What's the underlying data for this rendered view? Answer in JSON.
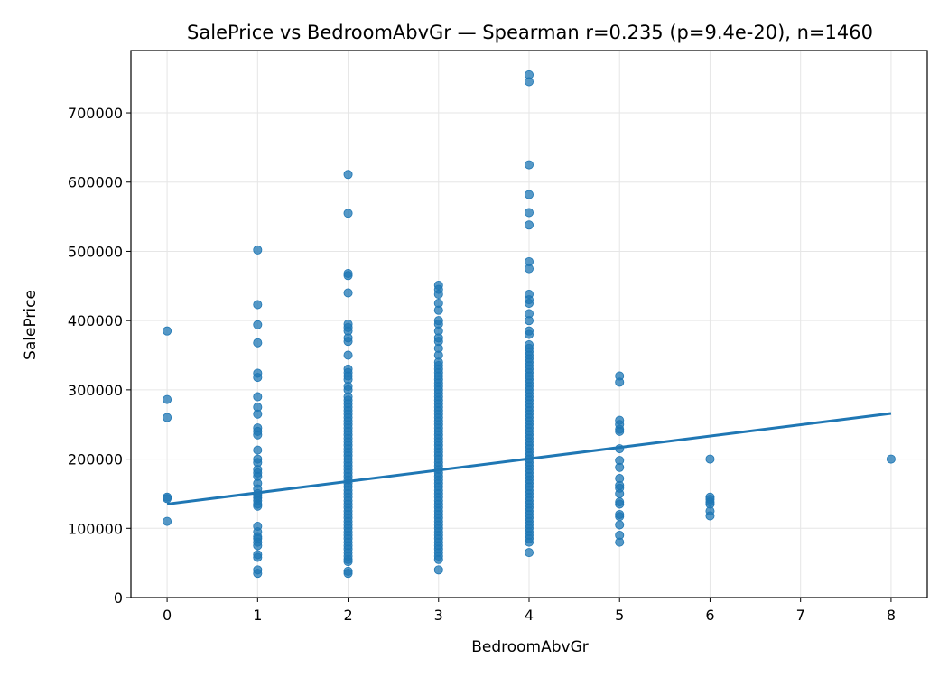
{
  "chart_data": {
    "type": "scatter",
    "title": "SalePrice vs BedroomAbvGr — Spearman r=0.235 (p=9.4e-20), n=1460",
    "xlabel": "BedroomAbvGr",
    "ylabel": "SalePrice",
    "xlim": [
      -0.4,
      8.4
    ],
    "ylim": [
      0,
      790000
    ],
    "xticks": [
      0,
      1,
      2,
      3,
      4,
      5,
      6,
      7,
      8
    ],
    "yticks": [
      0,
      100000,
      200000,
      300000,
      400000,
      500000,
      600000,
      700000
    ],
    "grid": true,
    "point_color": "#1f77b4",
    "line_color": "#1f77b4",
    "series": [
      {
        "type": "scatter",
        "points": [
          [
            0,
            385000
          ],
          [
            0,
            286000
          ],
          [
            0,
            260000
          ],
          [
            0,
            145000
          ],
          [
            0,
            143000
          ],
          [
            0,
            110000
          ],
          [
            1,
            502000
          ],
          [
            1,
            423000
          ],
          [
            1,
            394000
          ],
          [
            1,
            368000
          ],
          [
            1,
            324000
          ],
          [
            1,
            318000
          ],
          [
            1,
            290000
          ],
          [
            1,
            275000
          ],
          [
            1,
            265000
          ],
          [
            1,
            245000
          ],
          [
            1,
            240000
          ],
          [
            1,
            235000
          ],
          [
            1,
            213000
          ],
          [
            1,
            200000
          ],
          [
            1,
            195000
          ],
          [
            1,
            185000
          ],
          [
            1,
            180000
          ],
          [
            1,
            175000
          ],
          [
            1,
            165000
          ],
          [
            1,
            157000
          ],
          [
            1,
            150000
          ],
          [
            1,
            147000
          ],
          [
            1,
            144000
          ],
          [
            1,
            140000
          ],
          [
            1,
            135000
          ],
          [
            1,
            132000
          ],
          [
            1,
            103000
          ],
          [
            1,
            95000
          ],
          [
            1,
            88000
          ],
          [
            1,
            85000
          ],
          [
            1,
            80000
          ],
          [
            1,
            75000
          ],
          [
            1,
            62000
          ],
          [
            1,
            58000
          ],
          [
            1,
            40000
          ],
          [
            1,
            35000
          ],
          [
            2,
            611000
          ],
          [
            2,
            555000
          ],
          [
            2,
            468000
          ],
          [
            2,
            465000
          ],
          [
            2,
            440000
          ],
          [
            2,
            395000
          ],
          [
            2,
            390000
          ],
          [
            2,
            385000
          ],
          [
            2,
            375000
          ],
          [
            2,
            370000
          ],
          [
            2,
            350000
          ],
          [
            2,
            330000
          ],
          [
            2,
            325000
          ],
          [
            2,
            320000
          ],
          [
            2,
            315000
          ],
          [
            2,
            305000
          ],
          [
            2,
            300000
          ],
          [
            2,
            290000
          ],
          [
            2,
            285000
          ],
          [
            2,
            280000
          ],
          [
            2,
            275000
          ],
          [
            2,
            270000
          ],
          [
            2,
            265000
          ],
          [
            2,
            260000
          ],
          [
            2,
            255000
          ],
          [
            2,
            250000
          ],
          [
            2,
            245000
          ],
          [
            2,
            240000
          ],
          [
            2,
            235000
          ],
          [
            2,
            230000
          ],
          [
            2,
            225000
          ],
          [
            2,
            220000
          ],
          [
            2,
            215000
          ],
          [
            2,
            210000
          ],
          [
            2,
            205000
          ],
          [
            2,
            200000
          ],
          [
            2,
            195000
          ],
          [
            2,
            190000
          ],
          [
            2,
            185000
          ],
          [
            2,
            180000
          ],
          [
            2,
            175000
          ],
          [
            2,
            170000
          ],
          [
            2,
            165000
          ],
          [
            2,
            160000
          ],
          [
            2,
            155000
          ],
          [
            2,
            150000
          ],
          [
            2,
            145000
          ],
          [
            2,
            140000
          ],
          [
            2,
            135000
          ],
          [
            2,
            130000
          ],
          [
            2,
            125000
          ],
          [
            2,
            120000
          ],
          [
            2,
            115000
          ],
          [
            2,
            110000
          ],
          [
            2,
            105000
          ],
          [
            2,
            100000
          ],
          [
            2,
            95000
          ],
          [
            2,
            90000
          ],
          [
            2,
            85000
          ],
          [
            2,
            80000
          ],
          [
            2,
            75000
          ],
          [
            2,
            70000
          ],
          [
            2,
            65000
          ],
          [
            2,
            60000
          ],
          [
            2,
            55000
          ],
          [
            2,
            52000
          ],
          [
            2,
            38000
          ],
          [
            2,
            35000
          ],
          [
            3,
            451000
          ],
          [
            3,
            445000
          ],
          [
            3,
            438000
          ],
          [
            3,
            425000
          ],
          [
            3,
            415000
          ],
          [
            3,
            400000
          ],
          [
            3,
            395000
          ],
          [
            3,
            385000
          ],
          [
            3,
            375000
          ],
          [
            3,
            370000
          ],
          [
            3,
            360000
          ],
          [
            3,
            350000
          ],
          [
            3,
            340000
          ],
          [
            3,
            335000
          ],
          [
            3,
            330000
          ],
          [
            3,
            325000
          ],
          [
            3,
            320000
          ],
          [
            3,
            315000
          ],
          [
            3,
            310000
          ],
          [
            3,
            305000
          ],
          [
            3,
            300000
          ],
          [
            3,
            295000
          ],
          [
            3,
            290000
          ],
          [
            3,
            285000
          ],
          [
            3,
            280000
          ],
          [
            3,
            275000
          ],
          [
            3,
            270000
          ],
          [
            3,
            265000
          ],
          [
            3,
            260000
          ],
          [
            3,
            255000
          ],
          [
            3,
            250000
          ],
          [
            3,
            245000
          ],
          [
            3,
            240000
          ],
          [
            3,
            235000
          ],
          [
            3,
            230000
          ],
          [
            3,
            225000
          ],
          [
            3,
            220000
          ],
          [
            3,
            215000
          ],
          [
            3,
            210000
          ],
          [
            3,
            205000
          ],
          [
            3,
            200000
          ],
          [
            3,
            195000
          ],
          [
            3,
            190000
          ],
          [
            3,
            185000
          ],
          [
            3,
            180000
          ],
          [
            3,
            175000
          ],
          [
            3,
            170000
          ],
          [
            3,
            165000
          ],
          [
            3,
            160000
          ],
          [
            3,
            155000
          ],
          [
            3,
            150000
          ],
          [
            3,
            145000
          ],
          [
            3,
            140000
          ],
          [
            3,
            135000
          ],
          [
            3,
            130000
          ],
          [
            3,
            125000
          ],
          [
            3,
            120000
          ],
          [
            3,
            115000
          ],
          [
            3,
            110000
          ],
          [
            3,
            105000
          ],
          [
            3,
            100000
          ],
          [
            3,
            95000
          ],
          [
            3,
            90000
          ],
          [
            3,
            85000
          ],
          [
            3,
            80000
          ],
          [
            3,
            75000
          ],
          [
            3,
            70000
          ],
          [
            3,
            65000
          ],
          [
            3,
            60000
          ],
          [
            3,
            55000
          ],
          [
            3,
            40000
          ],
          [
            4,
            755000
          ],
          [
            4,
            745000
          ],
          [
            4,
            625000
          ],
          [
            4,
            582000
          ],
          [
            4,
            556000
          ],
          [
            4,
            538000
          ],
          [
            4,
            485000
          ],
          [
            4,
            475000
          ],
          [
            4,
            438000
          ],
          [
            4,
            430000
          ],
          [
            4,
            425000
          ],
          [
            4,
            410000
          ],
          [
            4,
            400000
          ],
          [
            4,
            385000
          ],
          [
            4,
            380000
          ],
          [
            4,
            365000
          ],
          [
            4,
            360000
          ],
          [
            4,
            355000
          ],
          [
            4,
            350000
          ],
          [
            4,
            345000
          ],
          [
            4,
            340000
          ],
          [
            4,
            335000
          ],
          [
            4,
            330000
          ],
          [
            4,
            325000
          ],
          [
            4,
            320000
          ],
          [
            4,
            315000
          ],
          [
            4,
            310000
          ],
          [
            4,
            305000
          ],
          [
            4,
            300000
          ],
          [
            4,
            295000
          ],
          [
            4,
            290000
          ],
          [
            4,
            285000
          ],
          [
            4,
            280000
          ],
          [
            4,
            275000
          ],
          [
            4,
            270000
          ],
          [
            4,
            265000
          ],
          [
            4,
            260000
          ],
          [
            4,
            255000
          ],
          [
            4,
            250000
          ],
          [
            4,
            245000
          ],
          [
            4,
            240000
          ],
          [
            4,
            235000
          ],
          [
            4,
            230000
          ],
          [
            4,
            225000
          ],
          [
            4,
            220000
          ],
          [
            4,
            215000
          ],
          [
            4,
            210000
          ],
          [
            4,
            205000
          ],
          [
            4,
            200000
          ],
          [
            4,
            195000
          ],
          [
            4,
            190000
          ],
          [
            4,
            185000
          ],
          [
            4,
            180000
          ],
          [
            4,
            175000
          ],
          [
            4,
            170000
          ],
          [
            4,
            165000
          ],
          [
            4,
            160000
          ],
          [
            4,
            155000
          ],
          [
            4,
            150000
          ],
          [
            4,
            145000
          ],
          [
            4,
            140000
          ],
          [
            4,
            135000
          ],
          [
            4,
            130000
          ],
          [
            4,
            125000
          ],
          [
            4,
            120000
          ],
          [
            4,
            115000
          ],
          [
            4,
            110000
          ],
          [
            4,
            105000
          ],
          [
            4,
            100000
          ],
          [
            4,
            95000
          ],
          [
            4,
            90000
          ],
          [
            4,
            85000
          ],
          [
            4,
            80000
          ],
          [
            4,
            65000
          ],
          [
            5,
            320000
          ],
          [
            5,
            311000
          ],
          [
            5,
            256000
          ],
          [
            5,
            250000
          ],
          [
            5,
            243000
          ],
          [
            5,
            240000
          ],
          [
            5,
            215000
          ],
          [
            5,
            198000
          ],
          [
            5,
            188000
          ],
          [
            5,
            172000
          ],
          [
            5,
            162000
          ],
          [
            5,
            158000
          ],
          [
            5,
            150000
          ],
          [
            5,
            138000
          ],
          [
            5,
            135000
          ],
          [
            5,
            120000
          ],
          [
            5,
            117000
          ],
          [
            5,
            105000
          ],
          [
            5,
            90000
          ],
          [
            5,
            80000
          ],
          [
            6,
            200000
          ],
          [
            6,
            145000
          ],
          [
            6,
            142000
          ],
          [
            6,
            138000
          ],
          [
            6,
            135000
          ],
          [
            6,
            125000
          ],
          [
            6,
            118000
          ],
          [
            8,
            200000
          ]
        ]
      },
      {
        "type": "line",
        "points": [
          [
            0,
            135000
          ],
          [
            8,
            266000
          ]
        ]
      }
    ]
  }
}
